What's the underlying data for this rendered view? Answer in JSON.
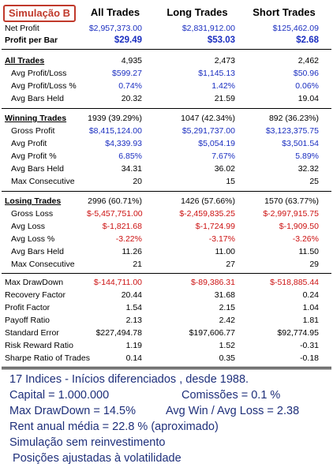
{
  "header": {
    "tag": "Simulação B",
    "col_all": "All Trades",
    "col_long": "Long Trades",
    "col_short": "Short Trades"
  },
  "top": {
    "net_profit": {
      "label": "Net Profit",
      "all": "$2,957,373.00",
      "long": "$2,831,912.00",
      "short": "$125,462.09"
    },
    "profit_per_bar": {
      "label": "Profit per Bar",
      "all": "$29.49",
      "long": "$53.03",
      "short": "$2.68"
    }
  },
  "all_trades": {
    "title": {
      "label": "All Trades",
      "all": "4,935",
      "long": "2,473",
      "short": "2,462"
    },
    "avg_pl": {
      "label": "Avg Profit/Loss",
      "all": "$599.27",
      "long": "$1,145.13",
      "short": "$50.96"
    },
    "avg_pl_pct": {
      "label": "Avg Profit/Loss %",
      "all": "0.74%",
      "long": "1.42%",
      "short": "0.06%"
    },
    "avg_bars": {
      "label": "Avg Bars Held",
      "all": "20.32",
      "long": "21.59",
      "short": "19.04"
    }
  },
  "winning": {
    "title": {
      "label": "Winning Trades",
      "all": "1939 (39.29%)",
      "long": "1047 (42.34%)",
      "short": "892 (36.23%)"
    },
    "gross": {
      "label": "Gross Profit",
      "all": "$8,415,124.00",
      "long": "$5,291,737.00",
      "short": "$3,123,375.75"
    },
    "avg": {
      "label": "Avg Profit",
      "all": "$4,339.93",
      "long": "$5,054.19",
      "short": "$3,501.54"
    },
    "avg_pct": {
      "label": "Avg Profit %",
      "all": "6.85%",
      "long": "7.67%",
      "short": "5.89%"
    },
    "bars": {
      "label": "Avg Bars Held",
      "all": "34.31",
      "long": "36.02",
      "short": "32.32"
    },
    "max_consec": {
      "label": "Max Consecutive",
      "all": "20",
      "long": "15",
      "short": "25"
    }
  },
  "losing": {
    "title": {
      "label": "Losing Trades",
      "all": "2996 (60.71%)",
      "long": "1426 (57.66%)",
      "short": "1570 (63.77%)"
    },
    "gross": {
      "label": "Gross Loss",
      "all": "$-5,457,751.00",
      "long": "$-2,459,835.25",
      "short": "$-2,997,915.75"
    },
    "avg": {
      "label": "Avg Loss",
      "all": "$-1,821.68",
      "long": "$-1,724.99",
      "short": "$-1,909.50"
    },
    "avg_pct": {
      "label": "Avg Loss %",
      "all": "-3.22%",
      "long": "-3.17%",
      "short": "-3.26%"
    },
    "bars": {
      "label": "Avg Bars Held",
      "all": "11.26",
      "long": "11.00",
      "short": "11.50"
    },
    "max_consec": {
      "label": "Max Consecutive",
      "all": "21",
      "long": "27",
      "short": "29"
    }
  },
  "stats": {
    "max_dd": {
      "label": "Max DrawDown",
      "all": "$-144,711.00",
      "long": "$-89,386.31",
      "short": "$-518,885.44"
    },
    "recovery": {
      "label": "Recovery Factor",
      "all": "20.44",
      "long": "31.68",
      "short": "0.24"
    },
    "profit_factor": {
      "label": "Profit Factor",
      "all": "1.54",
      "long": "2.15",
      "short": "1.04"
    },
    "payoff": {
      "label": "Payoff Ratio",
      "all": "2.13",
      "long": "2.42",
      "short": "1.81"
    },
    "std_err": {
      "label": "Standard Error",
      "all": "$227,494.78",
      "long": "$197,606.77",
      "short": "$92,774.95"
    },
    "rr": {
      "label": "Risk Reward Ratio",
      "all": "1.19",
      "long": "1.52",
      "short": "-0.31"
    },
    "sharpe": {
      "label": "Sharpe Ratio of Trades",
      "all": "0.14",
      "long": "0.35",
      "short": "-0.18"
    }
  },
  "notes": {
    "line1": "17 Indices - Inícios diferenciados , desde 1988.",
    "line2a": "Capital = 1.000.000",
    "line2b": "Comissões = 0.1 %",
    "line3a": "Max DrawDown = 14.5%",
    "line3b": "Avg Win / Avg Loss = 2.38",
    "line4": "Rent anual média = 22.8 % (aproximado)",
    "line5": "Simulação sem reinvestimento",
    "line6": " Posições ajustadas à volatilidade"
  }
}
